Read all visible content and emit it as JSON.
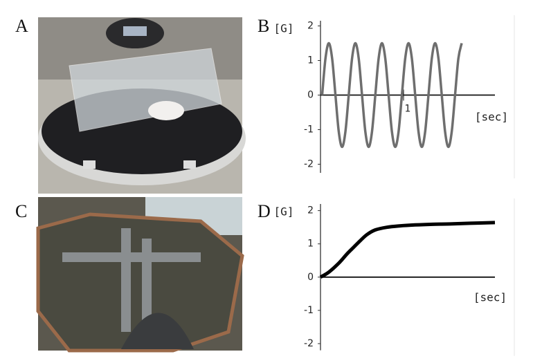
{
  "panel_labels": [
    "A",
    "B",
    "C",
    "D"
  ],
  "chart_data": [
    {
      "type": "line",
      "ylabel": "[G]",
      "xlabel": "[sec]",
      "color": "#6e6e6e",
      "x": [
        0.02,
        0.06,
        0.1,
        0.14,
        0.18,
        0.22,
        0.26,
        0.3,
        0.34,
        0.38,
        0.42,
        0.46,
        0.5,
        0.54,
        0.58,
        0.62,
        0.66,
        0.7,
        0.74,
        0.78,
        0.82,
        0.86,
        0.9,
        0.94,
        0.98,
        1.02,
        1.06,
        1.1,
        1.14,
        1.18,
        1.22,
        1.26,
        1.3,
        1.34,
        1.38,
        1.42,
        1.46,
        1.5,
        1.54,
        1.58,
        1.62,
        1.66,
        1.7
      ],
      "values": [
        0,
        1.06,
        1.5,
        1.06,
        0,
        -1.06,
        -1.5,
        -1.06,
        0,
        1.06,
        1.5,
        1.06,
        0,
        -1.06,
        -1.5,
        -1.06,
        0,
        1.06,
        1.5,
        1.06,
        0,
        -1.06,
        -1.5,
        -1.06,
        0,
        1.06,
        1.5,
        1.06,
        0,
        -1.06,
        -1.5,
        -1.06,
        0,
        1.06,
        1.5,
        1.06,
        0,
        -1.06,
        -1.5,
        -1.06,
        0,
        1.06,
        1.5
      ],
      "xlim": [
        0,
        2.1
      ],
      "xticks": [
        1
      ],
      "ylim": [
        -2.25,
        2.15
      ],
      "yticks": [
        2,
        1,
        0,
        -1,
        -2
      ]
    },
    {
      "type": "line",
      "ylabel": "[G]",
      "xlabel": "[sec]",
      "color": "#000000",
      "x": [
        0,
        0.1,
        0.22,
        0.32,
        0.4,
        0.48,
        0.56,
        0.66,
        0.8,
        0.95,
        1.14,
        1.35,
        1.56,
        1.8,
        2.1
      ],
      "values": [
        0,
        0.15,
        0.42,
        0.7,
        0.9,
        1.1,
        1.28,
        1.42,
        1.5,
        1.54,
        1.57,
        1.59,
        1.6,
        1.62,
        1.64
      ],
      "xlim": [
        0,
        2.1
      ],
      "ylim": [
        -2.2,
        2.2
      ],
      "yticks": [
        2,
        1,
        0,
        -1,
        -2
      ]
    }
  ]
}
